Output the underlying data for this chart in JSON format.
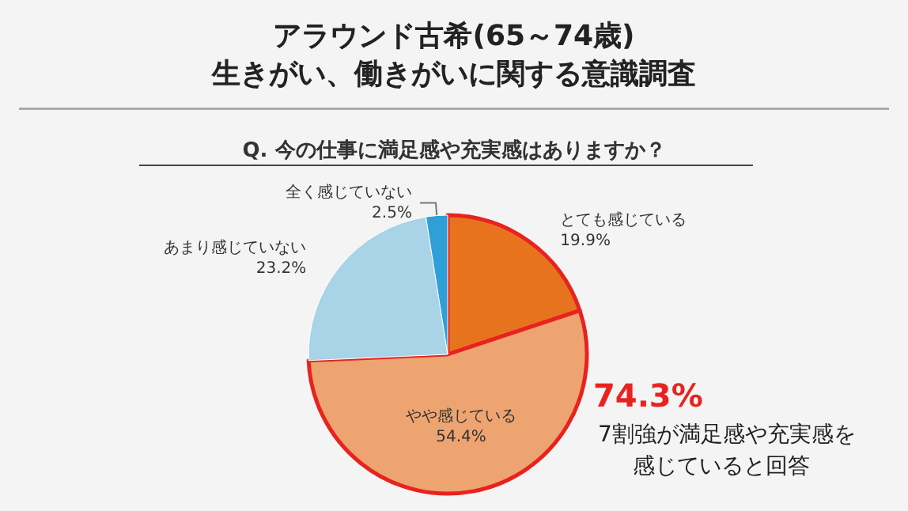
{
  "chart_data": {
    "type": "pie",
    "title": "アラウンド古希(65～74歳)\n生きがい、働きがいに関する意識調査",
    "subtitle": "Q. 今の仕事に満足感や充実感はありますか？",
    "categories": [
      "とても感じている",
      "やや感じている",
      "あまり感じていない",
      "全く感じていない"
    ],
    "values": [
      19.9,
      54.4,
      23.2,
      2.5
    ],
    "value_labels": [
      "19.9%",
      "54.4%",
      "23.2%",
      "2.5%"
    ],
    "colors": [
      "#e8731f",
      "#eda470",
      "#a9d3e6",
      "#2f9fd8"
    ],
    "annotations": [
      "74.3%",
      "7割強が満足感や充実感を",
      "感じていると回答"
    ],
    "legend": false
  }
}
